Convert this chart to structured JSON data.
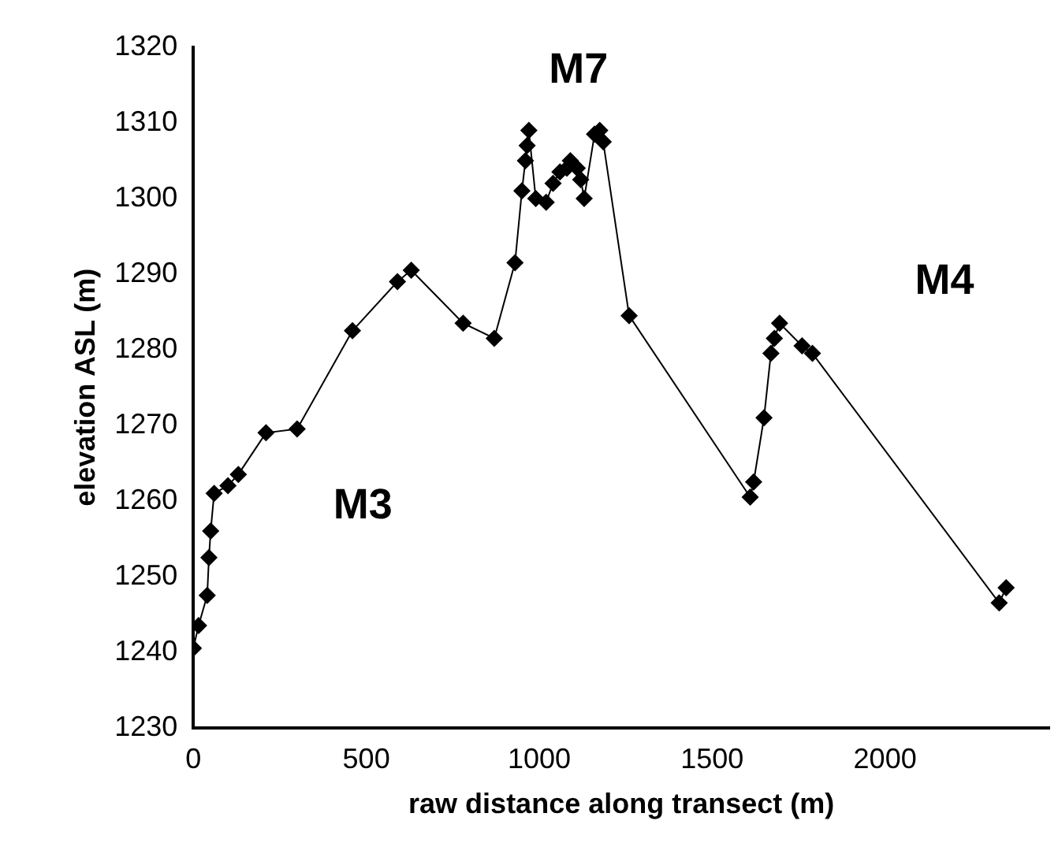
{
  "chart_data": {
    "type": "line",
    "xlabel": "raw distance along transect (m)",
    "ylabel": "elevation ASL (m)",
    "xlim": [
      0,
      2475
    ],
    "xticks": [
      0,
      500,
      1000,
      1500,
      2000
    ],
    "ylim": [
      1230,
      1320
    ],
    "yticks": [
      1230,
      1240,
      1250,
      1260,
      1270,
      1280,
      1290,
      1300,
      1310,
      1320
    ],
    "grid": false,
    "legend": false,
    "marker": "diamond",
    "line_style": "solid",
    "annotations": [
      "M7",
      "M3",
      "M4"
    ],
    "series": [
      {
        "color": "#000000",
        "x": [
          0,
          15,
          40,
          45,
          50,
          60,
          100,
          130,
          210,
          300,
          460,
          590,
          630,
          780,
          870,
          930,
          950,
          960,
          965,
          970,
          990,
          1020,
          1040,
          1060,
          1080,
          1090,
          1110,
          1120,
          1130,
          1160,
          1175,
          1185,
          1260,
          1610,
          1620,
          1650,
          1670,
          1680,
          1695,
          1760,
          1790,
          2330,
          2350
        ],
        "values": [
          1240.5,
          1243.5,
          1247.5,
          1252.5,
          1256,
          1261,
          1262,
          1263.5,
          1269,
          1269.5,
          1282.5,
          1289,
          1290.5,
          1283.5,
          1281.5,
          1291.5,
          1301,
          1305,
          1307,
          1309,
          1300,
          1299.5,
          1302,
          1303.5,
          1304,
          1305,
          1304,
          1302.5,
          1300,
          1308.5,
          1309,
          1307.5,
          1284.5,
          1260.5,
          1262.5,
          1271,
          1279.5,
          1281.5,
          1283.5,
          1280.5,
          1279.5,
          1246.5,
          1248.5
        ]
      }
    ]
  }
}
